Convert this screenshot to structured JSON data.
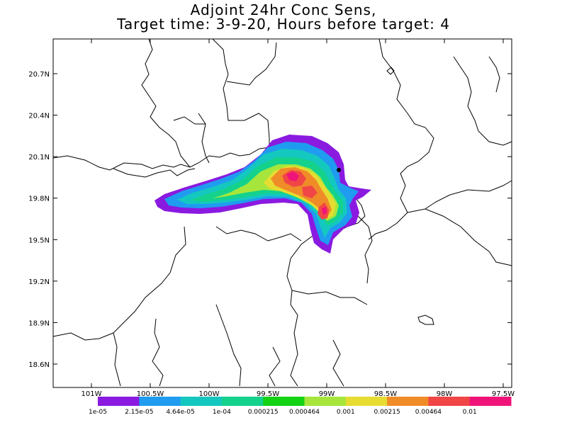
{
  "title": {
    "line1": "Adjoint 24hr Conc Sens,",
    "line2": "Target time: 3-9-20, Hours before target: 4"
  },
  "axes": {
    "lat_ticks": [
      "20.7N",
      "20.4N",
      "20.1N",
      "19.8N",
      "19.5N",
      "19.2N",
      "18.9N",
      "18.6N"
    ],
    "lon_ticks": [
      "101W",
      "100.5W",
      "100W",
      "99.5W",
      "99W",
      "98.5W",
      "98W",
      "97.5W"
    ]
  },
  "legend": {
    "labels": [
      "1e-05",
      "2.15e-05",
      "4.64e-05",
      "1e-04",
      "0.000215",
      "0.000464",
      "0.001",
      "0.00215",
      "0.00464",
      "0.01"
    ],
    "colors": [
      "#8a1ae0",
      "#1f9cf0",
      "#14c8c0",
      "#14d28c",
      "#14d214",
      "#a6e63c",
      "#e6dc32",
      "#f08c28",
      "#f04646",
      "#f0147a"
    ]
  },
  "map": {
    "plume_colors": [
      "#8a1ae0",
      "#1f9cf0",
      "#14c8c0",
      "#14d28c",
      "#a6e63c",
      "#e6dc32",
      "#f08c28",
      "#f04646",
      "#f0147a"
    ],
    "border_color": "#000000"
  }
}
